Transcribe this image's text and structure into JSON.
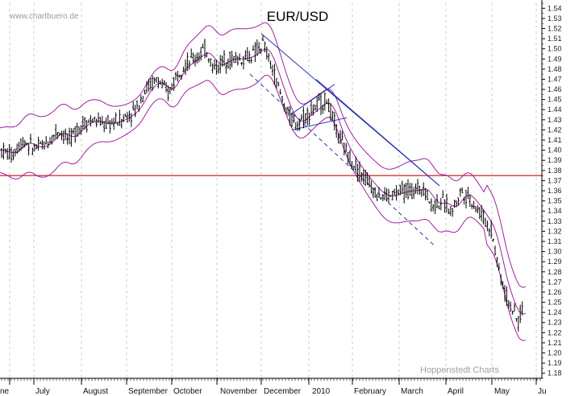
{
  "watermark": "www.chartbuero.de",
  "credit": "Hoppenstedt Charts",
  "chart_data": {
    "type": "candlestick",
    "title": "EUR/USD",
    "y_axis": {
      "side": "right",
      "range": [
        1.175,
        1.545
      ],
      "ticks": [
        1.18,
        1.19,
        1.2,
        1.21,
        1.22,
        1.23,
        1.24,
        1.25,
        1.26,
        1.27,
        1.28,
        1.29,
        1.3,
        1.31,
        1.32,
        1.33,
        1.34,
        1.35,
        1.36,
        1.37,
        1.38,
        1.39,
        1.4,
        1.41,
        1.42,
        1.43,
        1.44,
        1.45,
        1.46,
        1.47,
        1.48,
        1.49,
        1.5,
        1.51,
        1.52,
        1.53,
        1.54
      ],
      "grid": false
    },
    "x_axis": {
      "labels": [
        "ne",
        "July",
        "August",
        "September",
        "October",
        "November",
        "December",
        "2010",
        "February",
        "March",
        "April",
        "May",
        "Ju"
      ],
      "vertical_grid": "dashed"
    },
    "price_path": {
      "description_points": [
        {
          "label": "ne",
          "price": 1.4
        },
        {
          "label": "July",
          "price": 1.4
        },
        {
          "label": "August",
          "price": 1.42
        },
        {
          "label": "September",
          "price": 1.44
        },
        {
          "label": "October",
          "price": 1.48
        },
        {
          "label": "November",
          "price": 1.49
        },
        {
          "label": "December",
          "price": 1.51
        },
        {
          "label": "2010",
          "price": 1.44
        },
        {
          "label": "February",
          "price": 1.36
        },
        {
          "label": "March",
          "price": 1.36
        },
        {
          "label": "April",
          "price": 1.35
        },
        {
          "label": "May",
          "price": 1.26
        }
      ]
    },
    "horizontal_line": {
      "value": 1.375,
      "color": "#cc2222"
    },
    "bollinger_bands": {
      "color": "#a020a0"
    },
    "trend_lines": {
      "color": "#2233aa"
    },
    "colors": {
      "candles": "#000000",
      "bands": "#a020a0",
      "trend": "#2233aa",
      "support": "#cc2222"
    }
  }
}
